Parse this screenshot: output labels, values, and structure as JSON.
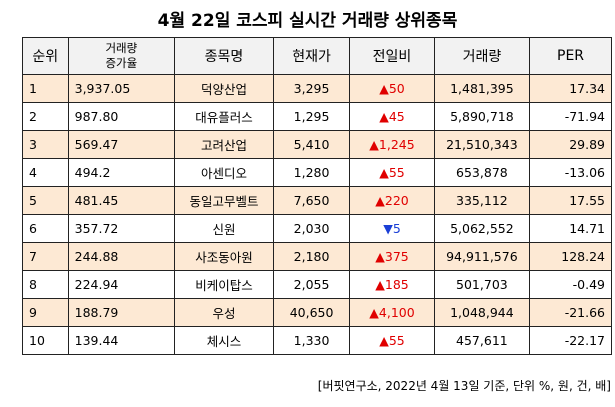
{
  "title": "4월 22일 코스피 실시간 거래량 상위종목",
  "table": {
    "headers": [
      "순위",
      "거래량\n증가율",
      "종목명",
      "현재가",
      "전일비",
      "거래량",
      "PER"
    ],
    "rows": [
      [
        "1",
        "3,937.05",
        "덕양산업",
        "3,295",
        "▲50",
        "1,481,395",
        "17.34"
      ],
      [
        "2",
        "987.80",
        "대유플러스",
        "1,295",
        "▲45",
        "5,890,718",
        "-71.94"
      ],
      [
        "3",
        "569.47",
        "고려산업",
        "5,410",
        "▲1,245",
        "21,510,343",
        "29.89"
      ],
      [
        "4",
        "494.2",
        "아센디오",
        "1,280",
        "▲55",
        "653,878",
        "-13.06"
      ],
      [
        "5",
        "481.45",
        "동일고무벨트",
        "7,650",
        "▲220",
        "335,112",
        "17.55"
      ],
      [
        "6",
        "357.72",
        "신원",
        "2,030",
        "▼5",
        "5,062,552",
        "14.71"
      ],
      [
        "7",
        "244.88",
        "사조동아원",
        "2,180",
        "▲375",
        "94,911,576",
        "128.24"
      ],
      [
        "8",
        "224.94",
        "비케이탑스",
        "2,055",
        "▲185",
        "501,703",
        "-0.49"
      ],
      [
        "9",
        "188.79",
        "우성",
        "40,650",
        "▲4,100",
        "1,048,944",
        "-21.66"
      ],
      [
        "10",
        "139.44",
        "체시스",
        "1,330",
        "▲55",
        "457,611",
        "-22.17"
      ]
    ]
  },
  "note": "[버핏연구소, 2022년 4월 13일 기준, 단위 %, 원, 건, 배]"
}
